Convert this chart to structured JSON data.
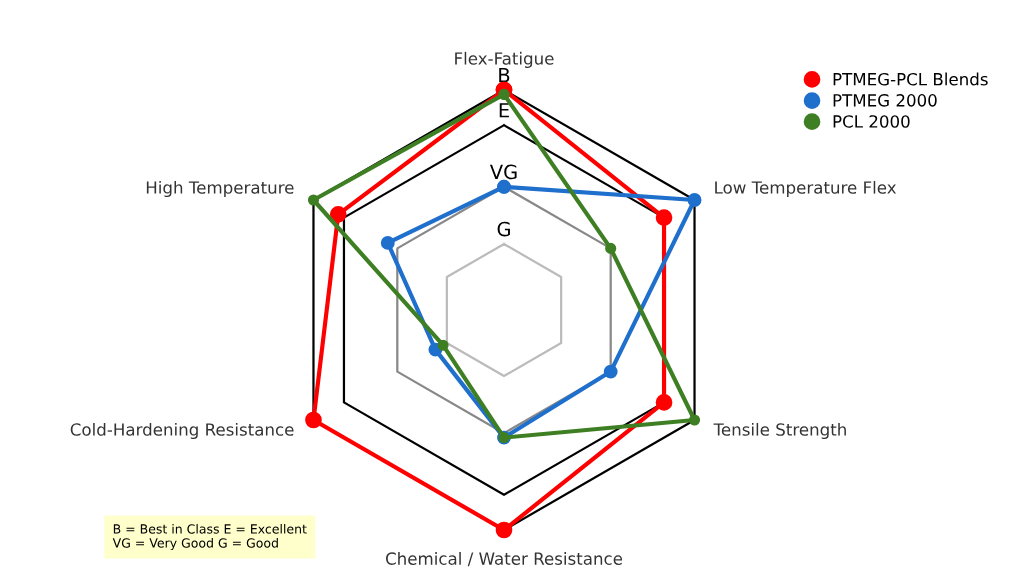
{
  "chart_data": {
    "type": "radar",
    "categories": [
      "Flex-Fatigue",
      "Low Temperature Flex",
      "Tensile Strength",
      "Chemical / Water Resistance",
      "Cold-Hardening Resistance",
      "High Temperature"
    ],
    "ylim": [
      0,
      1
    ],
    "yticks": [
      {
        "value": 0.3,
        "label": "G"
      },
      {
        "value": 0.56,
        "label": "VG"
      },
      {
        "value": 0.84,
        "label": "E"
      },
      {
        "value": 1,
        "label": "B"
      }
    ],
    "series": [
      {
        "name": "PTMEG-PCL Blends",
        "color": "#ff0000",
        "values": [
          1.0,
          0.84,
          0.84,
          1.0,
          1.0,
          0.87
        ]
      },
      {
        "name": "PTMEG 2000",
        "color": "#1f6fcc",
        "values": [
          0.56,
          1.0,
          0.56,
          0.58,
          0.36,
          0.61
        ]
      },
      {
        "name": "PCL 2000",
        "color": "#3f7f24",
        "values": [
          0.98,
          0.56,
          1.0,
          0.58,
          0.32,
          1.0
        ]
      }
    ],
    "marker": "circle",
    "legend": "top right",
    "grid": true,
    "annotations": [
      "B = Best in Class E = Excellent\nVG = Very Good G = Good"
    ]
  }
}
